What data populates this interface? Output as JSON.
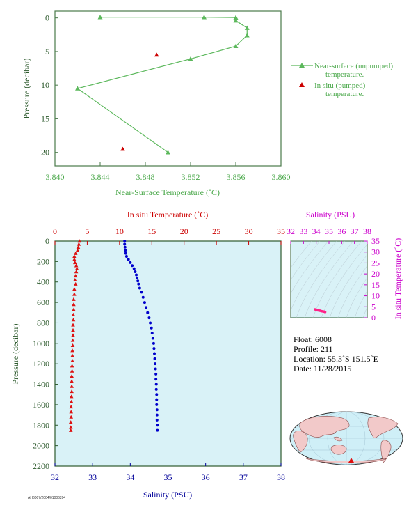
{
  "chart_data": [
    {
      "type": "line",
      "xlabel": "Near-Surface Temperature (˚C)",
      "ylabel": "Pressure (decibar)",
      "xlim": [
        3.84,
        3.86
      ],
      "ylim": [
        22,
        -1
      ],
      "xticks": [
        3.84,
        3.844,
        3.848,
        3.852,
        3.856,
        3.86
      ],
      "xtick_labels": [
        "3.840",
        "3.844",
        "3.848",
        "3.852",
        "3.856",
        "3.860"
      ],
      "yticks": [
        0,
        5,
        10,
        15,
        20
      ],
      "ytick_labels": [
        "0",
        "5",
        "10",
        "15",
        "20"
      ],
      "grid": false,
      "legend_position": "right",
      "series": [
        {
          "name": "Near-surface (unpumped) temperature.",
          "color": "#5cb85c",
          "marker": "triangle",
          "points": [
            [
              3.844,
              -0.1
            ],
            [
              3.8532,
              -0.1
            ],
            [
              3.856,
              -0.05
            ],
            [
              3.856,
              0.4
            ],
            [
              3.857,
              1.5
            ],
            [
              3.857,
              2.6
            ],
            [
              3.856,
              4.2
            ],
            [
              3.852,
              6.1
            ],
            [
              3.842,
              10.5
            ],
            [
              3.85,
              20.0
            ]
          ]
        },
        {
          "name": "In situ (pumped) temperature.",
          "color": "#cc0000",
          "marker": "triangle",
          "line": false,
          "points": [
            [
              3.849,
              5.5
            ],
            [
              3.846,
              19.5
            ]
          ]
        }
      ]
    },
    {
      "type": "scatter",
      "ylabel": "Pressure (decibar)",
      "ylim": [
        2200,
        0
      ],
      "yticks": [
        0,
        200,
        400,
        600,
        800,
        1000,
        1200,
        1400,
        1600,
        1800,
        2000,
        2200
      ],
      "ytick_labels": [
        "0",
        "200",
        "400",
        "600",
        "800",
        "1000",
        "1200",
        "1400",
        "1600",
        "1800",
        "2000",
        "2200"
      ],
      "top_axis": {
        "label": "In situ Temperature (˚C)",
        "lim": [
          0,
          35
        ],
        "ticks": [
          0,
          5,
          10,
          15,
          20,
          25,
          30,
          35
        ],
        "tick_labels": [
          "0",
          "5",
          "10",
          "15",
          "20",
          "25",
          "30",
          "35"
        ],
        "color": "#cc0000"
      },
      "bottom_axis": {
        "label": "Salinity (PSU)",
        "lim": [
          32,
          38
        ],
        "ticks": [
          32,
          33,
          34,
          35,
          36,
          37,
          38
        ],
        "tick_labels": [
          "32",
          "33",
          "34",
          "35",
          "36",
          "37",
          "38"
        ],
        "color": "#000099"
      },
      "background": "#d9f2f7",
      "series": [
        {
          "name": "In situ Temperature",
          "color": "#dd1111",
          "marker": "triangle",
          "axis": "top",
          "points": [
            [
              3.8,
              0
            ],
            [
              3.7,
              30
            ],
            [
              3.6,
              60
            ],
            [
              3.5,
              90
            ],
            [
              3.2,
              120
            ],
            [
              3.0,
              150
            ],
            [
              3.0,
              180
            ],
            [
              3.1,
              210
            ],
            [
              3.3,
              240
            ],
            [
              3.4,
              270
            ],
            [
              3.3,
              300
            ],
            [
              3.2,
              340
            ],
            [
              3.1,
              380
            ],
            [
              3.2,
              420
            ],
            [
              3.0,
              470
            ],
            [
              3.0,
              520
            ],
            [
              2.9,
              570
            ],
            [
              2.9,
              620
            ],
            [
              2.9,
              670
            ],
            [
              2.85,
              720
            ],
            [
              2.85,
              770
            ],
            [
              2.8,
              820
            ],
            [
              2.8,
              870
            ],
            [
              2.8,
              920
            ],
            [
              2.75,
              970
            ],
            [
              2.75,
              1020
            ],
            [
              2.7,
              1070
            ],
            [
              2.7,
              1120
            ],
            [
              2.7,
              1170
            ],
            [
              2.65,
              1220
            ],
            [
              2.65,
              1270
            ],
            [
              2.6,
              1320
            ],
            [
              2.6,
              1370
            ],
            [
              2.6,
              1420
            ],
            [
              2.6,
              1470
            ],
            [
              2.55,
              1520
            ],
            [
              2.55,
              1570
            ],
            [
              2.5,
              1620
            ],
            [
              2.5,
              1670
            ],
            [
              2.5,
              1720
            ],
            [
              2.45,
              1770
            ],
            [
              2.45,
              1820
            ],
            [
              2.45,
              1850
            ]
          ]
        },
        {
          "name": "Salinity",
          "color": "#0000cc",
          "marker": "circle",
          "axis": "bottom",
          "points": [
            [
              33.85,
              0
            ],
            [
              33.85,
              30
            ],
            [
              33.86,
              60
            ],
            [
              33.87,
              90
            ],
            [
              33.88,
              120
            ],
            [
              33.9,
              150
            ],
            [
              33.95,
              180
            ],
            [
              34.0,
              210
            ],
            [
              34.05,
              240
            ],
            [
              34.1,
              270
            ],
            [
              34.13,
              300
            ],
            [
              34.16,
              330
            ],
            [
              34.18,
              360
            ],
            [
              34.2,
              390
            ],
            [
              34.22,
              420
            ],
            [
              34.25,
              460
            ],
            [
              34.3,
              500
            ],
            [
              34.34,
              550
            ],
            [
              34.38,
              600
            ],
            [
              34.42,
              650
            ],
            [
              34.46,
              700
            ],
            [
              34.5,
              750
            ],
            [
              34.53,
              800
            ],
            [
              34.56,
              850
            ],
            [
              34.58,
              900
            ],
            [
              34.6,
              950
            ],
            [
              34.62,
              1000
            ],
            [
              34.63,
              1050
            ],
            [
              34.64,
              1100
            ],
            [
              34.65,
              1150
            ],
            [
              34.66,
              1200
            ],
            [
              34.67,
              1250
            ],
            [
              34.68,
              1300
            ],
            [
              34.68,
              1350
            ],
            [
              34.69,
              1400
            ],
            [
              34.69,
              1450
            ],
            [
              34.7,
              1500
            ],
            [
              34.7,
              1550
            ],
            [
              34.7,
              1600
            ],
            [
              34.71,
              1650
            ],
            [
              34.71,
              1700
            ],
            [
              34.71,
              1750
            ],
            [
              34.72,
              1800
            ],
            [
              34.72,
              1850
            ]
          ]
        }
      ]
    },
    {
      "type": "scatter",
      "xlabel": "Salinity (PSU)",
      "ylabel": "In situ Temperature (˚C)",
      "xlim": [
        32,
        38
      ],
      "ylim": [
        0,
        35
      ],
      "xticks": [
        32,
        33,
        34,
        35,
        36,
        37,
        38
      ],
      "xtick_labels": [
        "32",
        "33",
        "34",
        "35",
        "36",
        "37",
        "38"
      ],
      "yticks": [
        0,
        5,
        10,
        15,
        20,
        25,
        30,
        35
      ],
      "ytick_labels": [
        "0",
        "5",
        "10",
        "15",
        "20",
        "25",
        "30",
        "35"
      ],
      "color": "#cc00cc",
      "background": "#d9f2f7",
      "series": [
        {
          "name": "T-S",
          "color": "#ff2288",
          "points": [
            [
              33.9,
              3.8
            ],
            [
              34.0,
              3.6
            ],
            [
              34.1,
              3.4
            ],
            [
              34.2,
              3.3
            ],
            [
              34.3,
              3.2
            ],
            [
              34.4,
              3.0
            ],
            [
              34.5,
              2.9
            ],
            [
              34.6,
              2.8
            ],
            [
              34.65,
              2.7
            ],
            [
              34.7,
              2.6
            ]
          ]
        }
      ]
    }
  ],
  "float_info": {
    "float": "Float:  6008",
    "profile": "Profile:  211",
    "location": "Location:  55.3˚S  151.5˚E",
    "date": "Date:  11/28/2015"
  },
  "footer_code": "AH6007/2004/01006204"
}
